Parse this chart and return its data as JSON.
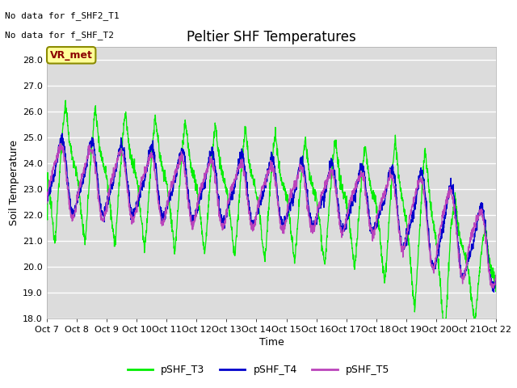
{
  "title": "Peltier SHF Temperatures",
  "xlabel": "Time",
  "ylabel": "Soil Temperature",
  "xlim": [
    0,
    15
  ],
  "ylim": [
    18.0,
    28.5
  ],
  "yticks": [
    18.0,
    19.0,
    20.0,
    21.0,
    22.0,
    23.0,
    24.0,
    25.0,
    26.0,
    27.0,
    28.0
  ],
  "xtick_labels": [
    "Oct 7",
    "Oct 8",
    "Oct 9",
    "Oct 10",
    "Oct 11",
    "Oct 12",
    "Oct 13",
    "Oct 14",
    "Oct 15",
    "Oct 16",
    "Oct 17",
    "Oct 18",
    "Oct 19",
    "Oct 20",
    "Oct 21",
    "Oct 22"
  ],
  "color_T3": "#00EE00",
  "color_T4": "#0000CC",
  "color_T5": "#BB44BB",
  "legend_labels": [
    "pSHF_T3",
    "pSHF_T4",
    "pSHF_T5"
  ],
  "annotation_text1": "No data for f_SHF2_T1",
  "annotation_text2": "No data for f_SHF_T2",
  "vr_met_label": "VR_met",
  "bg_color": "#DCDCDC",
  "title_fontsize": 12,
  "label_fontsize": 9,
  "tick_fontsize": 8,
  "annot_fontsize": 8
}
